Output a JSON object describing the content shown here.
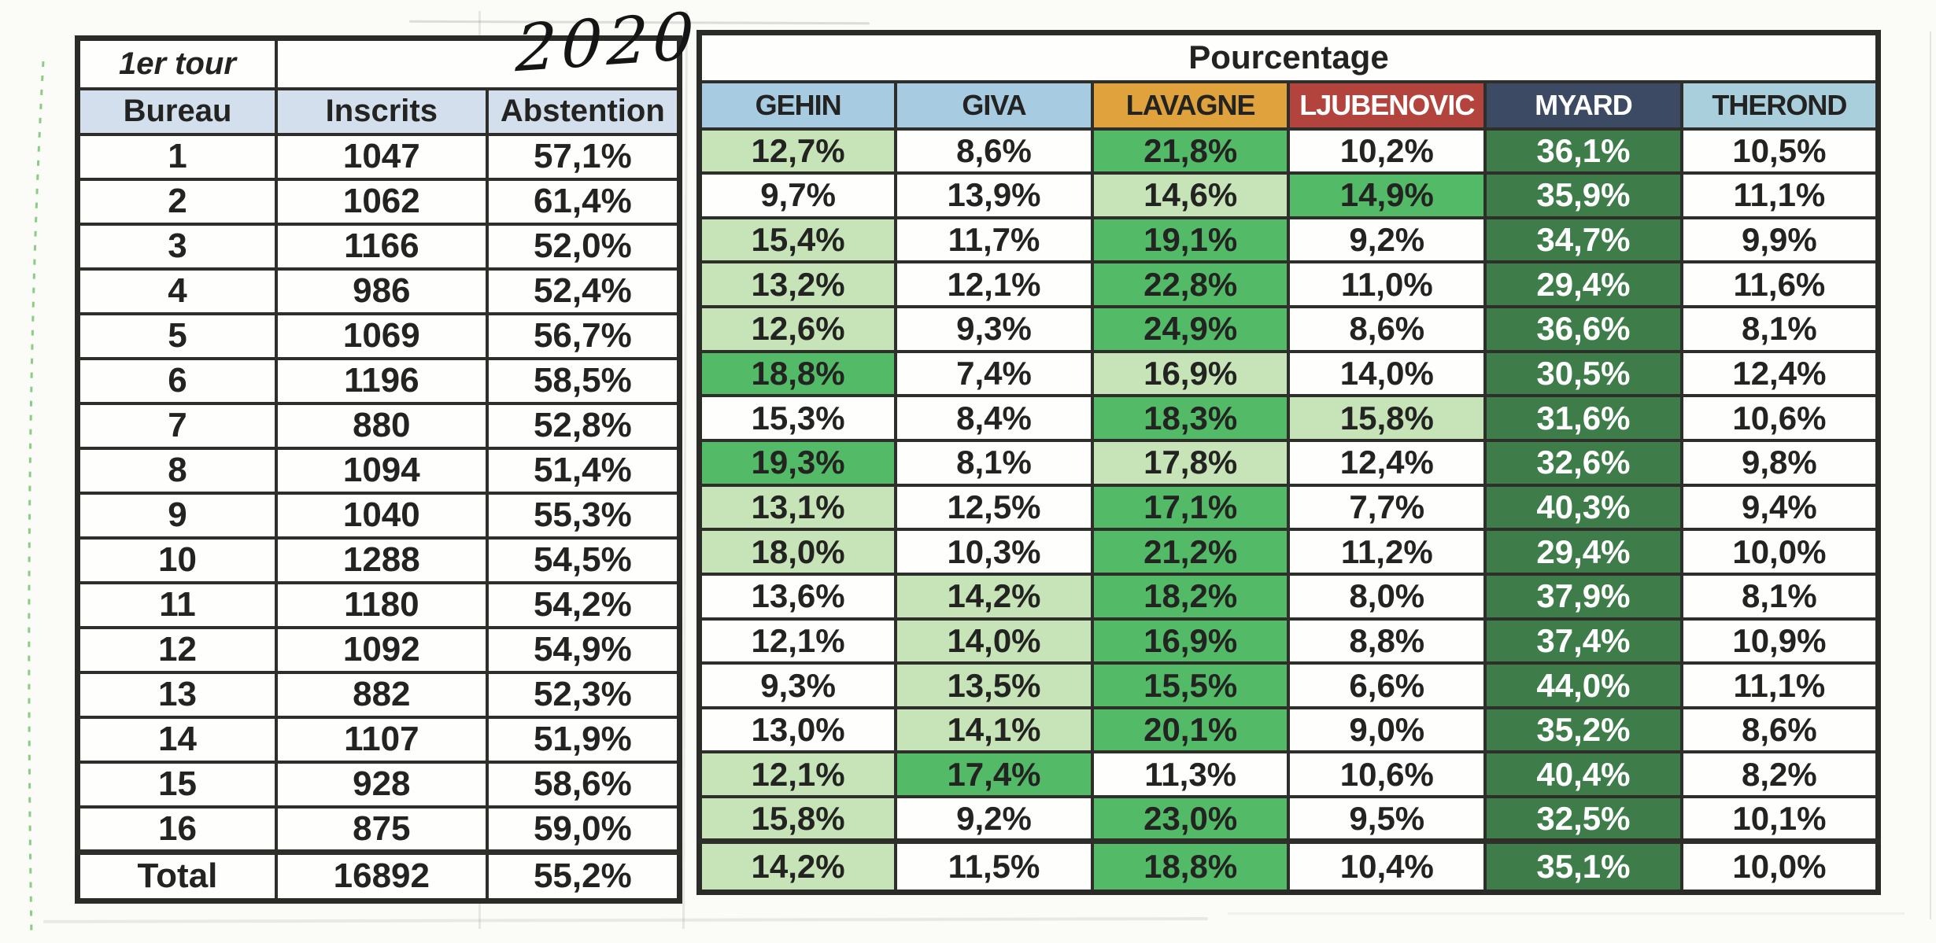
{
  "page": {
    "year_handwritten": "2020"
  },
  "left_table": {
    "round_label": "1er tour",
    "columns": [
      "Bureau",
      "Inscrits",
      "Abstention"
    ],
    "rows": [
      {
        "bureau": "1",
        "inscrits": "1047",
        "abstention": "57,1%"
      },
      {
        "bureau": "2",
        "inscrits": "1062",
        "abstention": "61,4%"
      },
      {
        "bureau": "3",
        "inscrits": "1166",
        "abstention": "52,0%"
      },
      {
        "bureau": "4",
        "inscrits": "986",
        "abstention": "52,4%"
      },
      {
        "bureau": "5",
        "inscrits": "1069",
        "abstention": "56,7%"
      },
      {
        "bureau": "6",
        "inscrits": "1196",
        "abstention": "58,5%"
      },
      {
        "bureau": "7",
        "inscrits": "880",
        "abstention": "52,8%"
      },
      {
        "bureau": "8",
        "inscrits": "1094",
        "abstention": "51,4%"
      },
      {
        "bureau": "9",
        "inscrits": "1040",
        "abstention": "55,3%"
      },
      {
        "bureau": "10",
        "inscrits": "1288",
        "abstention": "54,5%"
      },
      {
        "bureau": "11",
        "inscrits": "1180",
        "abstention": "54,2%"
      },
      {
        "bureau": "12",
        "inscrits": "1092",
        "abstention": "54,9%"
      },
      {
        "bureau": "13",
        "inscrits": "882",
        "abstention": "52,3%"
      },
      {
        "bureau": "14",
        "inscrits": "1107",
        "abstention": "51,9%"
      },
      {
        "bureau": "15",
        "inscrits": "928",
        "abstention": "58,6%"
      },
      {
        "bureau": "16",
        "inscrits": "875",
        "abstention": "59,0%"
      }
    ],
    "total": {
      "bureau": "Total",
      "inscrits": "16892",
      "abstention": "55,2%"
    }
  },
  "right_table": {
    "title": "Pourcentage",
    "candidates": [
      {
        "name": "GEHIN",
        "header_bg": "#a7cce2",
        "header_fg": "#232321"
      },
      {
        "name": "GIVA",
        "header_bg": "#a7cce2",
        "header_fg": "#232321"
      },
      {
        "name": "LAVAGNE",
        "header_bg": "#dfa23c",
        "header_fg": "#232321"
      },
      {
        "name": "LJUBENOVIC",
        "header_bg": "#b2433d",
        "header_fg": "#ffffff"
      },
      {
        "name": "MYARD",
        "header_bg": "#3c4a63",
        "header_fg": "#ffffff"
      },
      {
        "name": "THEROND",
        "header_bg": "#a9cfdd",
        "header_fg": "#232321"
      }
    ],
    "rows": [
      [
        "12,7%",
        "8,6%",
        "21,8%",
        "10,2%",
        "36,1%",
        "10,5%"
      ],
      [
        "9,7%",
        "13,9%",
        "14,6%",
        "14,9%",
        "35,9%",
        "11,1%"
      ],
      [
        "15,4%",
        "11,7%",
        "19,1%",
        "9,2%",
        "34,7%",
        "9,9%"
      ],
      [
        "13,2%",
        "12,1%",
        "22,8%",
        "11,0%",
        "29,4%",
        "11,6%"
      ],
      [
        "12,6%",
        "9,3%",
        "24,9%",
        "8,6%",
        "36,6%",
        "8,1%"
      ],
      [
        "18,8%",
        "7,4%",
        "16,9%",
        "14,0%",
        "30,5%",
        "12,4%"
      ],
      [
        "15,3%",
        "8,4%",
        "18,3%",
        "15,8%",
        "31,6%",
        "10,6%"
      ],
      [
        "19,3%",
        "8,1%",
        "17,8%",
        "12,4%",
        "32,6%",
        "9,8%"
      ],
      [
        "13,1%",
        "12,5%",
        "17,1%",
        "7,7%",
        "40,3%",
        "9,4%"
      ],
      [
        "18,0%",
        "10,3%",
        "21,2%",
        "11,2%",
        "29,4%",
        "10,0%"
      ],
      [
        "13,6%",
        "14,2%",
        "18,2%",
        "8,0%",
        "37,9%",
        "8,1%"
      ],
      [
        "12,1%",
        "14,0%",
        "16,9%",
        "8,8%",
        "37,4%",
        "10,9%"
      ],
      [
        "9,3%",
        "13,5%",
        "15,5%",
        "6,6%",
        "44,0%",
        "11,1%"
      ],
      [
        "13,0%",
        "14,1%",
        "20,1%",
        "9,0%",
        "35,2%",
        "8,6%"
      ],
      [
        "12,1%",
        "17,4%",
        "11,3%",
        "10,6%",
        "40,4%",
        "8,2%"
      ],
      [
        "15,8%",
        "9,2%",
        "23,0%",
        "9,5%",
        "32,5%",
        "10,1%"
      ]
    ],
    "total_row": [
      "14,2%",
      "11,5%",
      "18,8%",
      "10,4%",
      "35,1%",
      "10,0%"
    ]
  },
  "colors": {
    "rank1_bg": "#3e7d4a",
    "rank1_fg": "#ffffff",
    "rank2_bg": "#53bb67",
    "rank2_fg": "#232321",
    "rank3_bg": "#c6e4b8",
    "rank3_fg": "#232321",
    "plain_bg": "#fefefc",
    "plain_fg": "#232321"
  }
}
